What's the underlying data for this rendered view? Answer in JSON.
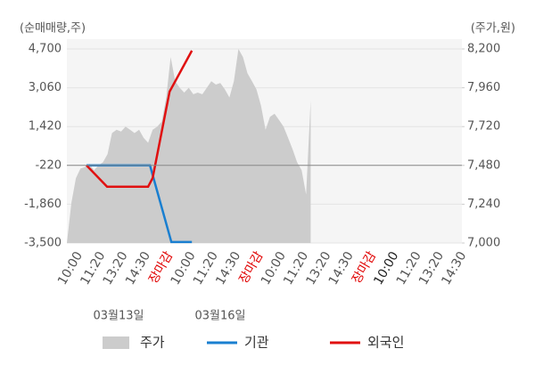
{
  "chart_data": {
    "type": "line",
    "y_axis_label": "(순매매량,주)",
    "y2_axis_label": "(주가,원)",
    "categories": [
      "10:00",
      "11:20",
      "13:20",
      "14:30",
      "장마감",
      "10:00",
      "11:20",
      "14:30",
      "장마감",
      "10:00",
      "11:20",
      "13:20",
      "14:30",
      "장마감",
      "10:00",
      "11:20",
      "13:20",
      "14:30"
    ],
    "xtick_colors": [
      "#555",
      "#555",
      "#555",
      "#555",
      "#e00000",
      "#555",
      "#555",
      "#555",
      "#e00000",
      "#555",
      "#555",
      "#555",
      "#555",
      "#e00000",
      "#222",
      "#555",
      "#555",
      "#555"
    ],
    "date_labels": [
      "03월13일",
      "03월16일"
    ],
    "xlim": [
      -0.4,
      17.1
    ],
    "ylim": [
      -3500,
      4700
    ],
    "yticks": [
      {
        "value": -3500,
        "label": "-3,500"
      },
      {
        "value": -1860,
        "label": "-1,860"
      },
      {
        "value": -220,
        "label": "-220"
      },
      {
        "value": 1420,
        "label": "1,420"
      },
      {
        "value": 3060,
        "label": "3,060"
      },
      {
        "value": 4700,
        "label": "4,700"
      }
    ],
    "y2lim": [
      7000,
      8200
    ],
    "y2ticks": [
      {
        "value": 7000,
        "label": "7,000"
      },
      {
        "value": 7240,
        "label": "7,240"
      },
      {
        "value": 7480,
        "label": "7,480"
      },
      {
        "value": 7720,
        "label": "7,720"
      },
      {
        "value": 7960,
        "label": "7,960"
      },
      {
        "value": 8200,
        "label": "8,200"
      }
    ],
    "grid": true,
    "series": [
      {
        "name": "주가",
        "color": "#cccccc",
        "axis": "y2",
        "kind": "area",
        "x": [
          -0.4,
          -0.2,
          0,
          0.2,
          0.4,
          0.6,
          0.8,
          1.0,
          1.2,
          1.4,
          1.6,
          1.8,
          2.0,
          2.2,
          2.4,
          2.6,
          2.8,
          3.0,
          3.2,
          3.4,
          3.6,
          3.8,
          4.0,
          4.2,
          4.4,
          4.6,
          4.8,
          5.0,
          5.2,
          5.4,
          5.6,
          5.8,
          6.0,
          6.2,
          6.4,
          6.6,
          6.8,
          7.0,
          7.2,
          7.4,
          7.6,
          7.8,
          8.0,
          8.2,
          8.4,
          8.6,
          8.8,
          9.0,
          9.2,
          9.4,
          9.6,
          9.8,
          10.0,
          10.2,
          10.4
        ],
        "values": [
          7000,
          7250,
          7400,
          7460,
          7470,
          7490,
          7450,
          7480,
          7500,
          7550,
          7680,
          7700,
          7690,
          7720,
          7700,
          7680,
          7700,
          7650,
          7620,
          7700,
          7720,
          7750,
          7900,
          8150,
          8000,
          7960,
          7930,
          7960,
          7920,
          7930,
          7920,
          7960,
          8000,
          7980,
          7990,
          7950,
          7900,
          8000,
          8200,
          8150,
          8050,
          8000,
          7950,
          7850,
          7700,
          7780,
          7800,
          7760,
          7720,
          7650,
          7580,
          7500,
          7450,
          7300,
          7880
        ]
      },
      {
        "name": "기관",
        "color": "#1a7fd0",
        "kind": "line",
        "x": [
          0.47,
          3.28,
          4.23,
          5.14
        ],
        "values": [
          -220,
          -220,
          -3460,
          -3460
        ]
      },
      {
        "name": "외국인",
        "color": "#e01010",
        "kind": "line",
        "x": [
          0.47,
          1.38,
          3.2,
          3.4,
          4.15,
          5.14
        ],
        "values": [
          -220,
          -1120,
          -1120,
          -750,
          2900,
          4630
        ]
      }
    ]
  }
}
